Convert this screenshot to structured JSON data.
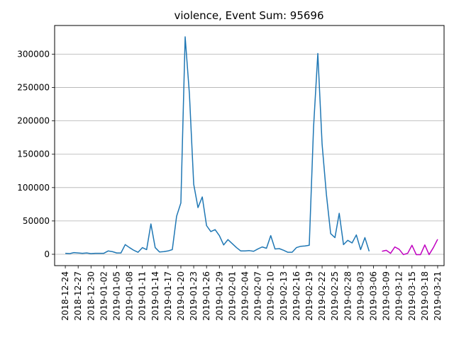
{
  "chart_data": {
    "type": "line",
    "title": "violence, Event Sum: 95696",
    "xlabel": "",
    "ylabel": "",
    "ylim": [
      -17000,
      343000
    ],
    "grid": {
      "y": true,
      "x": false
    },
    "start_date": "2018-12-24",
    "x_tick_labels": [
      "2018-12-24",
      "2018-12-27",
      "2018-12-30",
      "2019-01-02",
      "2019-01-05",
      "2019-01-08",
      "2019-01-11",
      "2019-01-14",
      "2019-01-17",
      "2019-01-20",
      "2019-01-23",
      "2019-01-26",
      "2019-01-29",
      "2019-02-01",
      "2019-02-04",
      "2019-02-07",
      "2019-02-10",
      "2019-02-13",
      "2019-02-16",
      "2019-02-19",
      "2019-02-22",
      "2019-02-25",
      "2019-02-28",
      "2019-03-03",
      "2019-03-06",
      "2019-03-09",
      "2019-03-12",
      "2019-03-15",
      "2019-03-18",
      "2019-03-21"
    ],
    "y_ticks": [
      0,
      50000,
      100000,
      150000,
      200000,
      250000,
      300000
    ],
    "series": [
      {
        "color": "#1f77b4",
        "start_date": "2018-12-24",
        "values": [
          1500,
          1000,
          2500,
          2000,
          1500,
          2000,
          1000,
          1500,
          1500,
          1500,
          5000,
          4000,
          2000,
          2000,
          14500,
          10000,
          6000,
          3000,
          10000,
          7000,
          45500,
          10000,
          3500,
          4000,
          5000,
          7000,
          57000,
          77000,
          326000,
          240000,
          105000,
          70000,
          86000,
          43000,
          34000,
          37000,
          28000,
          14000,
          22000,
          16000,
          10000,
          5000,
          5000,
          5500,
          4500,
          8000,
          11000,
          9000,
          28000,
          8000,
          8500,
          6000,
          3000,
          3000,
          10000,
          12000,
          12500,
          13500,
          190000,
          301000,
          165000,
          90000,
          31000,
          25000,
          61500,
          14500,
          21000,
          17000,
          29000,
          7000,
          25000,
          4500
        ]
      },
      {
        "color": "#c000c0",
        "start_date": "2019-03-08",
        "values": [
          4500,
          6000,
          1500,
          11000,
          7500,
          -500,
          1500,
          13500,
          -500,
          -500,
          14000,
          -500,
          10000,
          22500
        ]
      }
    ]
  }
}
